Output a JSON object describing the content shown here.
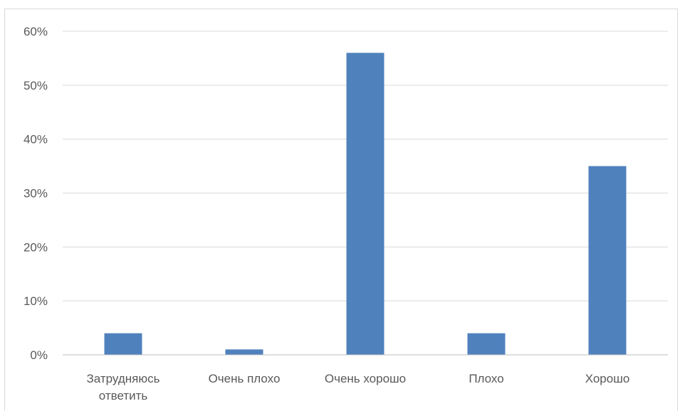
{
  "chart_data": {
    "type": "bar",
    "categories": [
      [
        "Затрудняюсь",
        "ответить"
      ],
      [
        "Очень плохо"
      ],
      [
        "Очень хорошо"
      ],
      [
        "Плохо"
      ],
      [
        "Хорошо"
      ]
    ],
    "values": [
      4,
      1,
      56,
      4,
      35
    ],
    "value_format": "percent",
    "ylim": [
      0,
      60
    ],
    "yticks": [
      0,
      10,
      20,
      30,
      40,
      50,
      60
    ],
    "ytick_labels": [
      "0%",
      "10%",
      "20%",
      "30%",
      "40%",
      "50%",
      "60%"
    ],
    "grid": true,
    "legend": "none",
    "bar_color": "#4f81bd",
    "grid_color": "#d9d9d9",
    "axis_color": "#bfbfbf",
    "label_color": "#595959"
  }
}
